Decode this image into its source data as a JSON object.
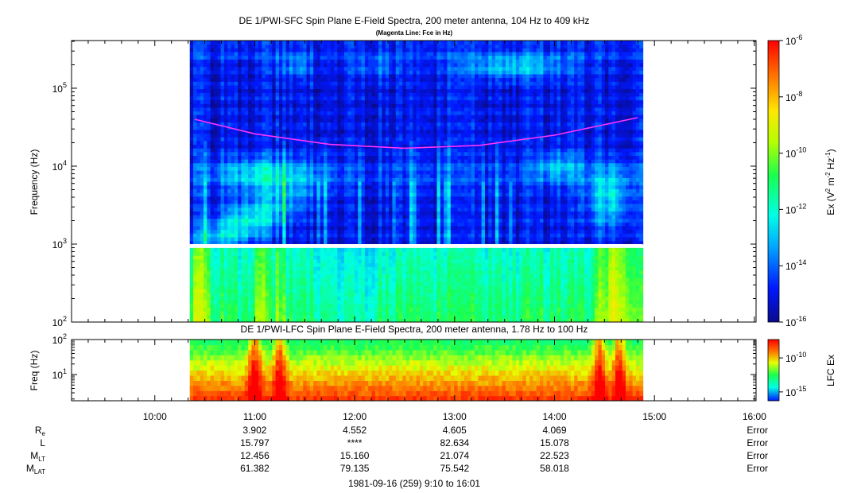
{
  "chart_data": [
    {
      "type": "heatmap",
      "title": "DE 1/PWI-SFC  Spin Plane E-Field Spectra, 200 meter antenna, 104 Hz to 409 kHz",
      "subtitle": "(Magenta Line: Fce in Hz)",
      "ylabel": "Frequency (Hz)",
      "y_scale": "log",
      "ylim": [
        100,
        409000
      ],
      "y_ticks": [
        {
          "value": 100,
          "base": "10",
          "exp": "2"
        },
        {
          "value": 1000,
          "base": "10",
          "exp": "3"
        },
        {
          "value": 10000,
          "base": "10",
          "exp": "4"
        },
        {
          "value": 100000,
          "base": "10",
          "exp": "5"
        }
      ],
      "data_time_range": [
        "10:21",
        "14:53"
      ],
      "colorbar": {
        "label_parts": {
          "a": "Ex (V",
          "b": "2",
          "c": " m",
          "d": "-2",
          "e": " Hz",
          "f": "-1",
          "g": ")"
        },
        "scale": "log",
        "range": [
          1e-16,
          1e-06
        ],
        "ticks": [
          {
            "value": 1e-16,
            "base": "10",
            "exp": "-16"
          },
          {
            "value": 1e-14,
            "base": "10",
            "exp": "-14"
          },
          {
            "value": 1e-12,
            "base": "10",
            "exp": "-12"
          },
          {
            "value": 1e-10,
            "base": "10",
            "exp": "-10"
          },
          {
            "value": 1e-08,
            "base": "10",
            "exp": "-8"
          },
          {
            "value": 1e-06,
            "base": "10",
            "exp": "-6"
          }
        ]
      },
      "fce_line": {
        "color": "#ff33ff",
        "points": [
          [
            "10:24",
            40000
          ],
          [
            "11:00",
            26000
          ],
          [
            "11:45",
            19000
          ],
          [
            "12:30",
            17000
          ],
          [
            "13:15",
            18500
          ],
          [
            "14:00",
            25000
          ],
          [
            "14:50",
            42000
          ]
        ]
      }
    },
    {
      "type": "heatmap",
      "title": "DE 1/PWI-LFC  Spin Plane E-Field Spectra, 200 meter antenna, 1.78 Hz to 100 Hz",
      "ylabel": "Freq (Hz)",
      "y_scale": "log",
      "ylim": [
        1.78,
        100
      ],
      "y_ticks": [
        {
          "value": 10,
          "base": "10",
          "exp": "1"
        },
        {
          "value": 100,
          "base": "10",
          "exp": "2"
        }
      ],
      "data_time_range": [
        "10:21",
        "14:53"
      ],
      "colorbar": {
        "label": "LFC Ex",
        "scale": "log",
        "ticks": [
          {
            "value": 1e-15,
            "base": "10",
            "exp": "-15"
          },
          {
            "value": 1e-10,
            "base": "10",
            "exp": "-10"
          }
        ]
      }
    }
  ],
  "x_axis": {
    "range_hours": [
      9.1667,
      16.0167
    ],
    "major_ticks": [
      {
        "hour": 10,
        "label": "10:00"
      },
      {
        "hour": 11,
        "label": "11:00"
      },
      {
        "hour": 12,
        "label": "12:00"
      },
      {
        "hour": 13,
        "label": "13:00"
      },
      {
        "hour": 14,
        "label": "14:00"
      },
      {
        "hour": 15,
        "label": "15:00"
      },
      {
        "hour": 16,
        "label": "16:00"
      }
    ]
  },
  "ephemeris": {
    "rows": [
      {
        "label_main": "R",
        "label_sub": "e",
        "values": [
          "3.902",
          "4.552",
          "4.605",
          "4.069",
          "Error"
        ]
      },
      {
        "label_main": "L",
        "label_sub": "",
        "values": [
          "15.797",
          "****",
          "82.634",
          "15.078",
          "Error"
        ]
      },
      {
        "label_main": "M",
        "label_sub": "LT",
        "values": [
          "12.456",
          "15.160",
          "21.074",
          "22.523",
          "Error"
        ]
      },
      {
        "label_main": "M",
        "label_sub": "LAT",
        "values": [
          "61.382",
          "79.135",
          "75.542",
          "58.018",
          "Error"
        ]
      }
    ],
    "column_hours": [
      11,
      12,
      13,
      14,
      16
    ]
  },
  "footer": "1981-09-16 (259) 9:10 to 16:01"
}
